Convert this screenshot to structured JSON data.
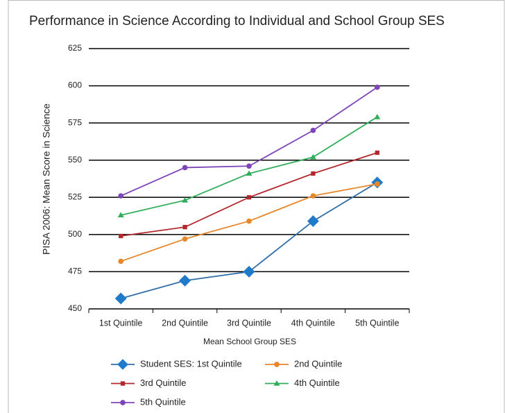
{
  "chart_data": {
    "type": "line",
    "title": "Performance in Science According to Individual and School Group SES",
    "x_label": "Mean School Group SES",
    "y_label": "PISA 2006: Mean Score in Science",
    "categories": [
      "1st Quintile",
      "2nd Quintile",
      "3rd Quintile",
      "4th  Quintile",
      "5th  Quintile"
    ],
    "series": [
      {
        "name": "Student SES: 1st Quintile",
        "color": "#2f6ea8",
        "marker": "diamond",
        "marker_color": "#1f7bc9",
        "values": [
          457,
          469,
          475,
          509,
          535
        ]
      },
      {
        "name": "2nd Quintile",
        "color": "#e8862a",
        "marker": "circle",
        "values": [
          482,
          497,
          509,
          526,
          534
        ]
      },
      {
        "name": "3rd Quintile",
        "color": "#b3282d",
        "marker": "square",
        "values": [
          499,
          505,
          525,
          541,
          555
        ]
      },
      {
        "name": "4th  Quintile",
        "color": "#2fae5a",
        "marker": "triangle",
        "values": [
          513,
          523,
          541,
          552,
          579
        ]
      },
      {
        "name": "5th  Quintile",
        "color": "#7d45b8",
        "marker": "circle",
        "values": [
          526,
          545,
          546,
          570,
          599
        ]
      }
    ],
    "ylim": [
      450,
      625
    ],
    "yticks": [
      450,
      475,
      500,
      525,
      550,
      575,
      600,
      625
    ],
    "grid": true
  }
}
